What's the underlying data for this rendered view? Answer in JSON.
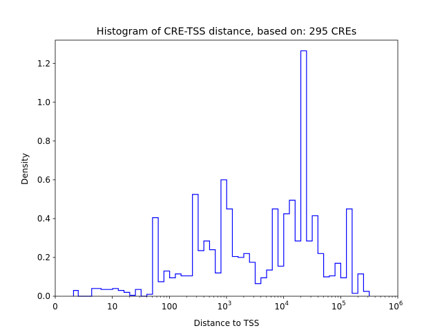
{
  "chart_data": {
    "type": "histogram",
    "title": "Histogram of CRE-TSS distance, based on: 295 CREs",
    "xlabel": "Distance to TSS",
    "ylabel": "Density",
    "xscale": "symlog",
    "xlim": [
      0,
      1000000
    ],
    "ylim": [
      0,
      1.32
    ],
    "grid": false,
    "legend": "none",
    "color": "#0000ff",
    "x_ticks": [
      {
        "value": 0,
        "label": "0"
      },
      {
        "value": 10,
        "label": "10"
      },
      {
        "value": 100,
        "label": "100"
      },
      {
        "value": 1000,
        "label": "10",
        "exp": "3"
      },
      {
        "value": 10000,
        "label": "10",
        "exp": "4"
      },
      {
        "value": 100000,
        "label": "10",
        "exp": "5"
      },
      {
        "value": 1000000,
        "label": "10",
        "exp": "6"
      }
    ],
    "y_ticks": [
      "0.0",
      "0.2",
      "0.4",
      "0.6",
      "0.8",
      "1.0",
      "1.2"
    ],
    "y_tick_values": [
      0,
      0.2,
      0.4,
      0.6,
      0.8,
      1.0,
      1.2
    ],
    "bins": {
      "x_start": 3.2,
      "x_end": 316228,
      "densities": [
        0.03,
        0.0,
        0.0,
        0.04,
        0.035,
        0.04,
        0.03,
        0.02,
        0.005,
        0.035,
        0.0,
        0.01,
        0.405,
        0.075,
        0.13,
        0.095,
        0.115,
        0.105,
        0.105,
        0.525,
        0.235,
        0.285,
        0.24,
        0.12,
        0.6,
        0.45,
        0.205,
        0.2,
        0.22,
        0.175,
        0.065,
        0.095,
        0.135,
        0.45,
        0.155,
        0.425,
        0.495,
        0.285,
        1.265,
        0.285,
        0.415,
        0.22,
        0.1,
        0.105,
        0.17,
        0.095,
        0.45,
        0.015,
        0.115,
        0.025
      ]
    }
  }
}
